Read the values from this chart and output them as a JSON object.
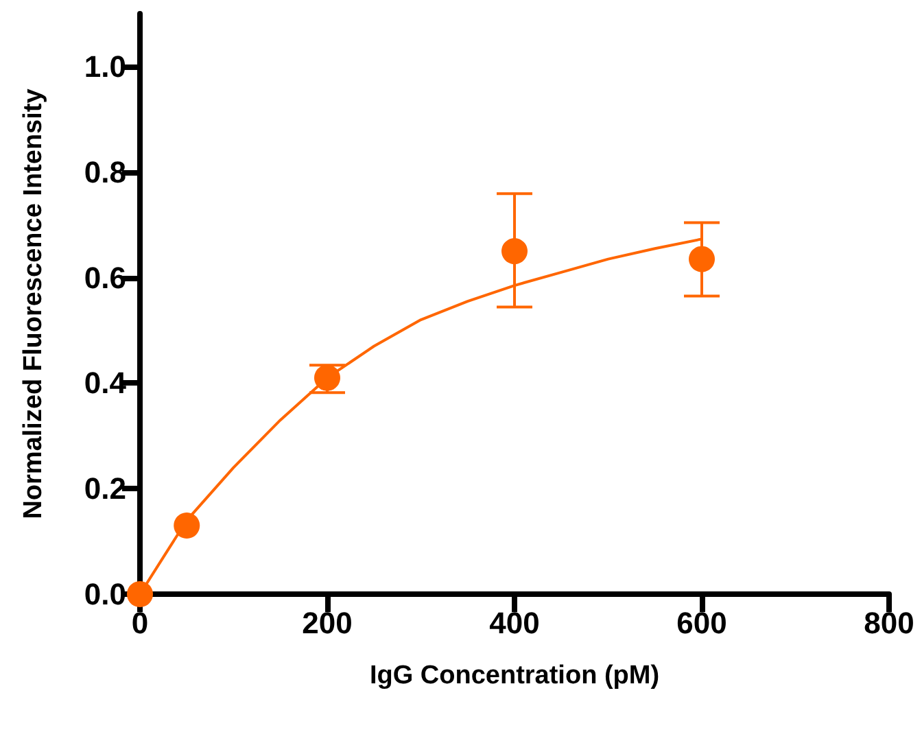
{
  "chart_data": {
    "type": "scatter",
    "xlabel": "IgG Concentration (pM)",
    "ylabel": "Normalized Fluorescence Intensity",
    "xlim": [
      0,
      800
    ],
    "xticks": [
      0,
      200,
      400,
      600,
      800
    ],
    "ylim": [
      0,
      1.1
    ],
    "yticks": [
      {
        "value": 0,
        "label": "0.0"
      },
      {
        "value": 0.2,
        "label": "0.2"
      },
      {
        "value": 0.4,
        "label": "0.4"
      },
      {
        "value": 0.6,
        "label": "0.6"
      },
      {
        "value": 0.8,
        "label": "0.8"
      },
      {
        "value": 1,
        "label": "1.0"
      }
    ],
    "marker": "circle",
    "series": [
      {
        "color": "#ff6600",
        "x": [
          0,
          50,
          200,
          400,
          600
        ],
        "values": [
          0,
          0.13,
          0.41,
          0.65,
          0.635
        ],
        "errors": [
          null,
          null,
          [
            0.382,
            0.434
          ],
          [
            0.544,
            0.759
          ],
          [
            0.565,
            0.704
          ]
        ]
      },
      {
        "type": "line",
        "color": "#ff6600",
        "marker": "none",
        "line_style": "solid",
        "x": [
          0,
          25,
          50,
          75,
          100,
          150,
          200,
          250,
          300,
          350,
          400,
          450,
          500,
          550,
          600
        ],
        "values": [
          0,
          0.07,
          0.14,
          0.19,
          0.24,
          0.33,
          0.41,
          0.47,
          0.52,
          0.555,
          0.585,
          0.61,
          0.635,
          0.655,
          0.673
        ]
      }
    ]
  }
}
